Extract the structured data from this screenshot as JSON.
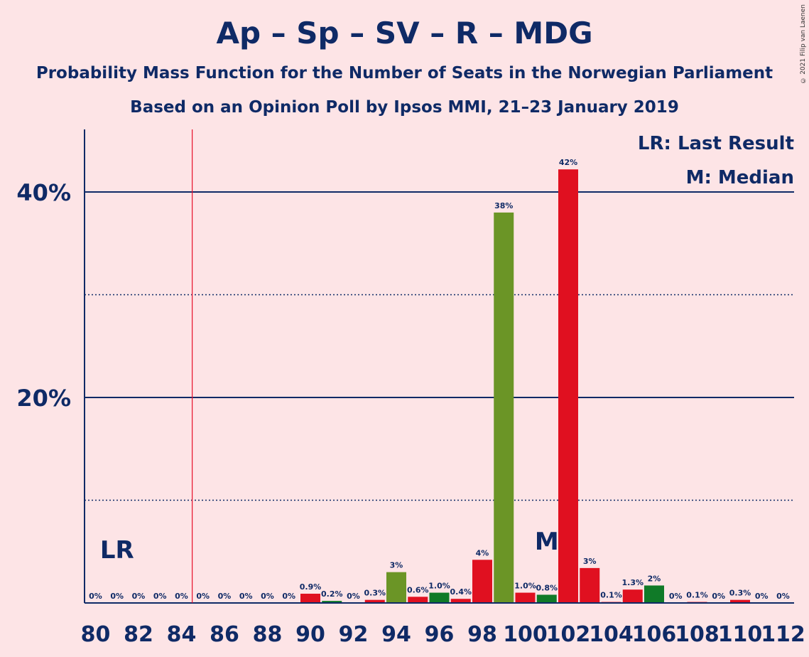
{
  "header": {
    "title": "Ap – Sp – SV – R – MDG",
    "subtitle": "Probability Mass Function for the Number of Seats in the Norwegian Parliament",
    "subtitle2": "Based on an Opinion Poll by Ipsos MMI, 21–23 January 2019",
    "copyright": "© 2021 Filip van Laenen"
  },
  "legend": {
    "lr": "LR: Last Result",
    "m": "M: Median"
  },
  "markers": {
    "lr_label": "LR",
    "lr_seat": 84.5,
    "lr_label_seat": 81,
    "m_label": "M",
    "m_seat": 101
  },
  "colors": {
    "background": "#fde4e6",
    "text": "#0f2a66",
    "red": "#e01020",
    "dark_green": "#107a28",
    "olive_green": "#6b9526",
    "lr_line": "#e8102a"
  },
  "chart_data": {
    "type": "bar",
    "title": "Ap – Sp – SV – R – MDG",
    "xlabel": "",
    "ylabel": "",
    "xlim": [
      80,
      112
    ],
    "ylim": [
      0,
      46
    ],
    "yticks": [
      20,
      40
    ],
    "ytick_labels": [
      "20%",
      "40%"
    ],
    "dotted_gridlines": [
      10,
      30
    ],
    "xticks": [
      80,
      82,
      84,
      86,
      88,
      90,
      92,
      94,
      96,
      98,
      100,
      102,
      104,
      106,
      108,
      110,
      112
    ],
    "bars": [
      {
        "seat": 80,
        "value": 0,
        "label": "0%",
        "color": "red"
      },
      {
        "seat": 81,
        "value": 0,
        "label": "0%",
        "color": "red"
      },
      {
        "seat": 82,
        "value": 0,
        "label": "0%",
        "color": "red"
      },
      {
        "seat": 83,
        "value": 0,
        "label": "0%",
        "color": "red"
      },
      {
        "seat": 84,
        "value": 0,
        "label": "0%",
        "color": "red"
      },
      {
        "seat": 85,
        "value": 0,
        "label": "0%",
        "color": "red"
      },
      {
        "seat": 86,
        "value": 0,
        "label": "0%",
        "color": "red"
      },
      {
        "seat": 87,
        "value": 0,
        "label": "0%",
        "color": "red"
      },
      {
        "seat": 88,
        "value": 0,
        "label": "0%",
        "color": "red"
      },
      {
        "seat": 89,
        "value": 0,
        "label": "0%",
        "color": "red"
      },
      {
        "seat": 90,
        "value": 0.9,
        "label": "0.9%",
        "color": "red"
      },
      {
        "seat": 91,
        "value": 0.2,
        "label": "0.2%",
        "color": "dark_green"
      },
      {
        "seat": 92,
        "value": 0,
        "label": "0%",
        "color": "red"
      },
      {
        "seat": 93,
        "value": 0.3,
        "label": "0.3%",
        "color": "red"
      },
      {
        "seat": 94,
        "value": 3.0,
        "label": "3%",
        "color": "olive_green"
      },
      {
        "seat": 95,
        "value": 0.6,
        "label": "0.6%",
        "color": "red"
      },
      {
        "seat": 96,
        "value": 1.0,
        "label": "1.0%",
        "color": "dark_green"
      },
      {
        "seat": 97,
        "value": 0.4,
        "label": "0.4%",
        "color": "red"
      },
      {
        "seat": 98,
        "value": 4.2,
        "label": "4%",
        "color": "red"
      },
      {
        "seat": 99,
        "value": 38.0,
        "label": "38%",
        "color": "olive_green"
      },
      {
        "seat": 100,
        "value": 1.0,
        "label": "1.0%",
        "color": "red"
      },
      {
        "seat": 101,
        "value": 0.8,
        "label": "0.8%",
        "color": "dark_green"
      },
      {
        "seat": 102,
        "value": 42.2,
        "label": "42%",
        "color": "red"
      },
      {
        "seat": 103,
        "value": 3.4,
        "label": "3%",
        "color": "red"
      },
      {
        "seat": 104,
        "value": 0.1,
        "label": "0.1%",
        "color": "red"
      },
      {
        "seat": 105,
        "value": 1.3,
        "label": "1.3%",
        "color": "red"
      },
      {
        "seat": 106,
        "value": 1.7,
        "label": "2%",
        "color": "dark_green"
      },
      {
        "seat": 107,
        "value": 0,
        "label": "0%",
        "color": "red"
      },
      {
        "seat": 108,
        "value": 0.1,
        "label": "0.1%",
        "color": "red"
      },
      {
        "seat": 109,
        "value": 0,
        "label": "0%",
        "color": "red"
      },
      {
        "seat": 110,
        "value": 0.3,
        "label": "0.3%",
        "color": "red"
      },
      {
        "seat": 111,
        "value": 0,
        "label": "0%",
        "color": "red"
      },
      {
        "seat": 112,
        "value": 0,
        "label": "0%",
        "color": "red"
      }
    ]
  }
}
